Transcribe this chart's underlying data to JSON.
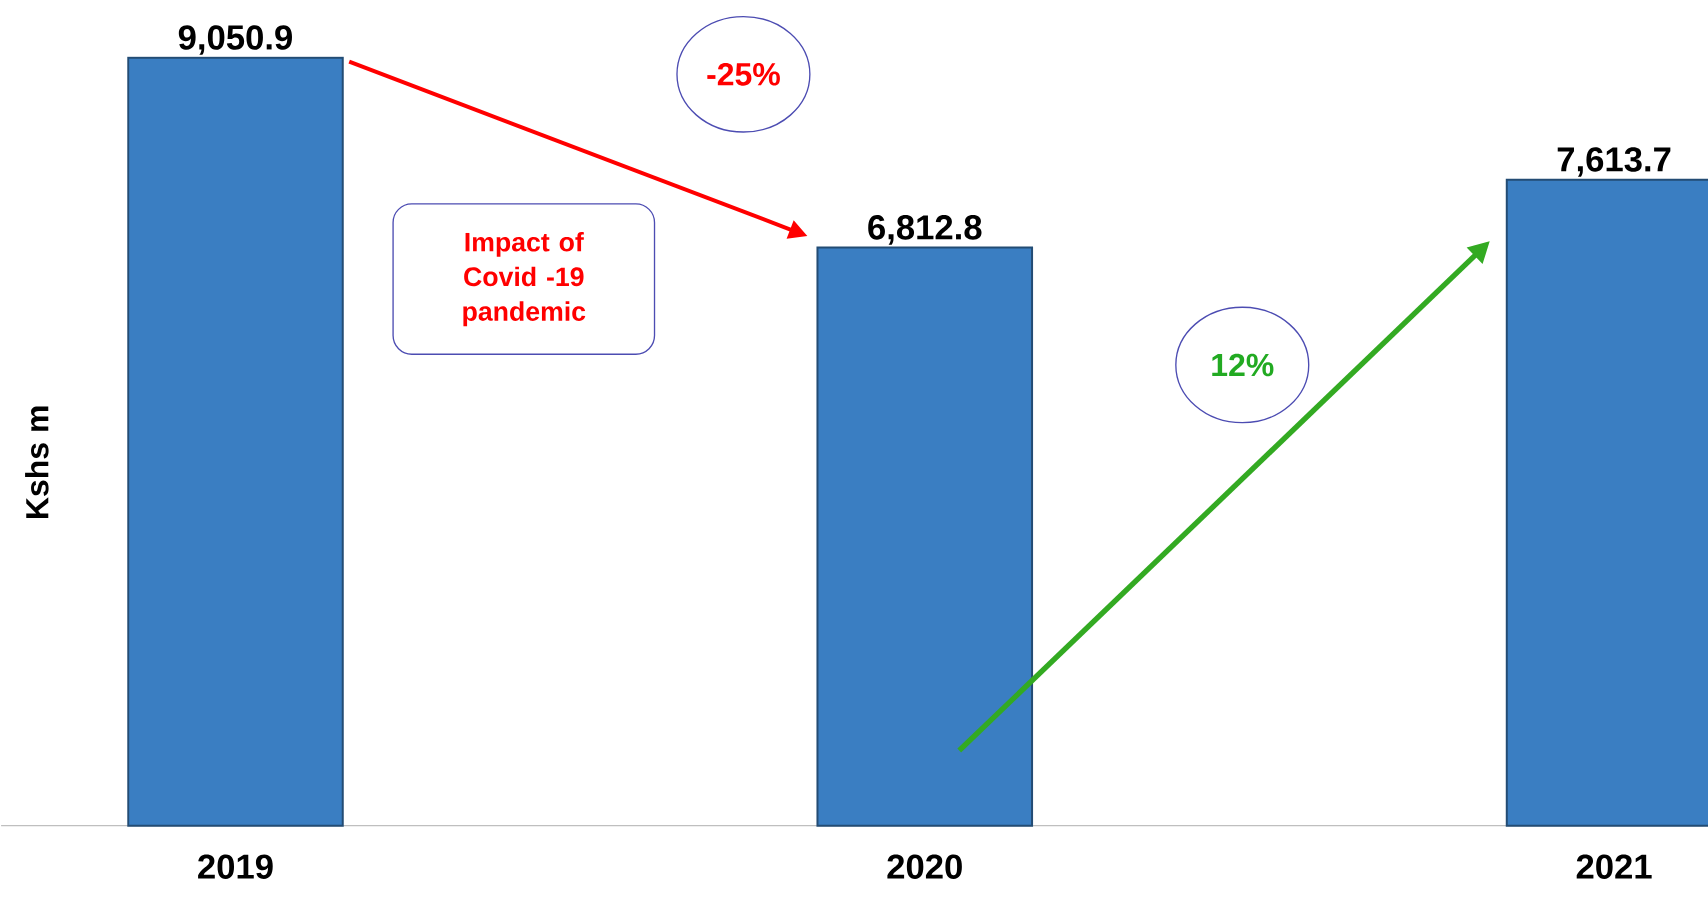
{
  "chart_data": {
    "type": "bar",
    "ylabel": "Kshs m",
    "categories": [
      "2019",
      "2020",
      "2021"
    ],
    "values": [
      9050.9,
      6812.8,
      7613.7
    ],
    "color": "#3a7ec2",
    "data_labels": true,
    "value_labels": [
      "9,050.9",
      "6,812.8",
      "7,613.7"
    ],
    "annotations": [
      "-25%",
      "Impact of Covid -19 pandemic",
      "12%"
    ]
  }
}
